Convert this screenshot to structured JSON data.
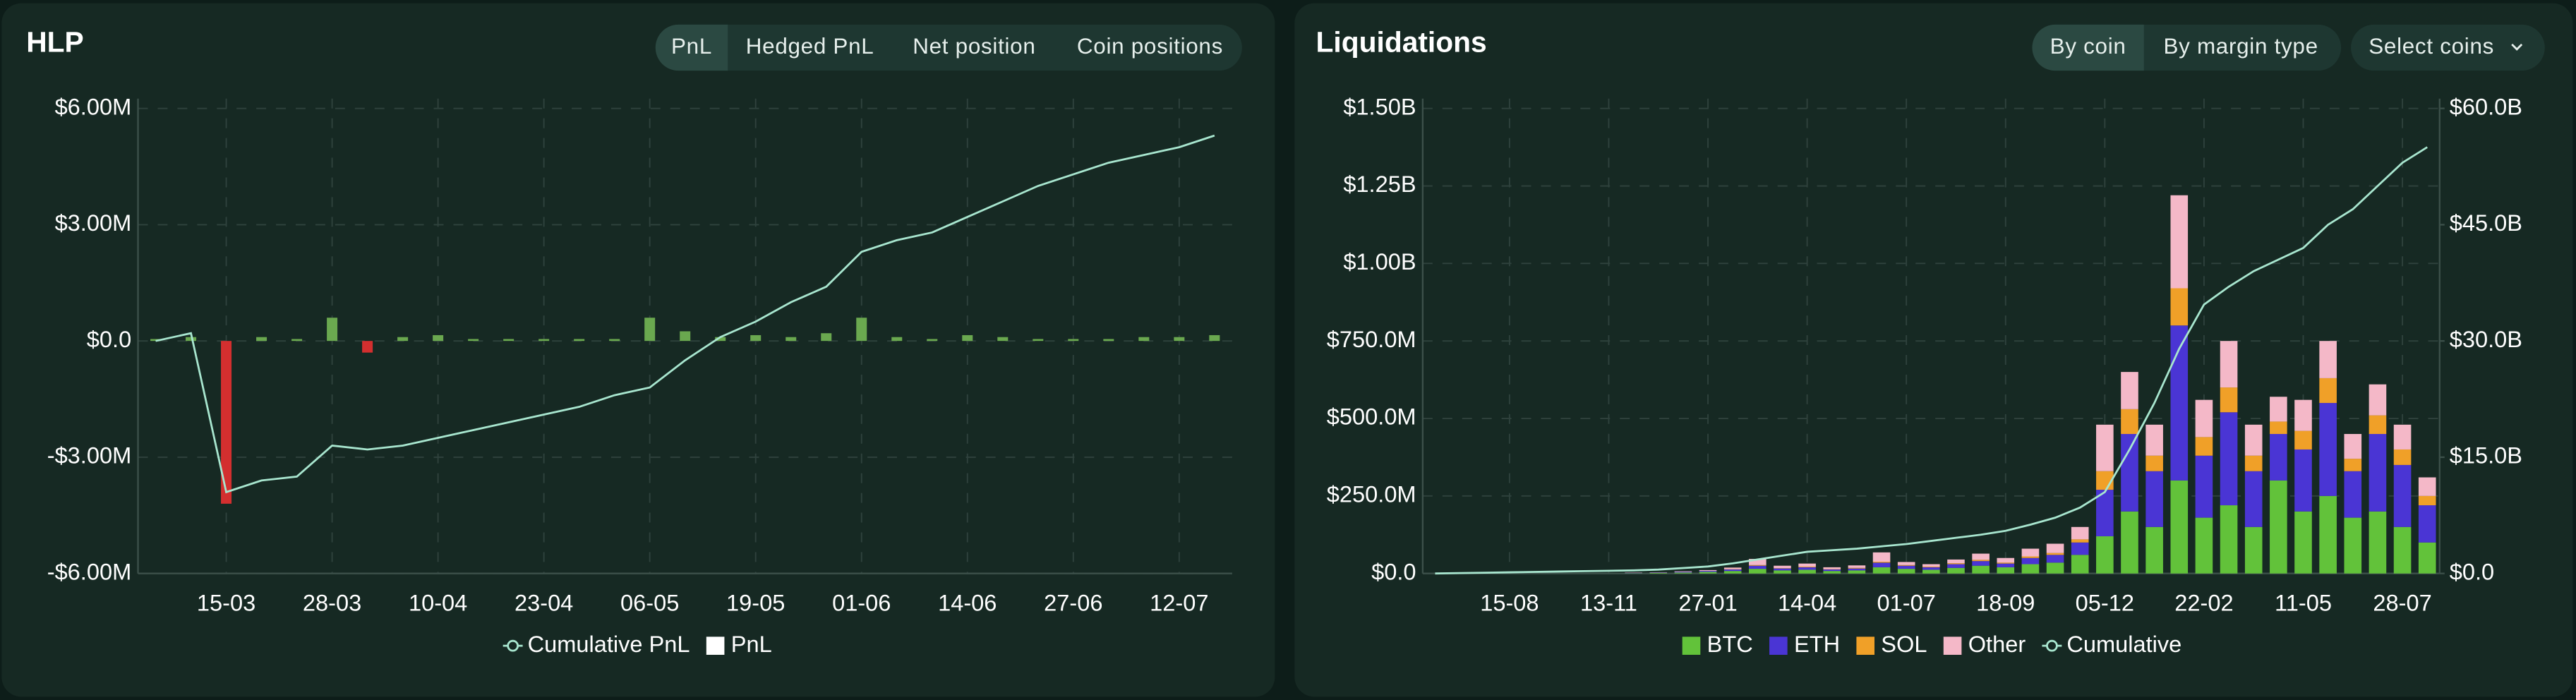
{
  "controls": {
    "hlp": [
      "PnL",
      "Hedged PnL",
      "Net position",
      "Coin positions"
    ],
    "liquidations": [
      "By coin",
      "By margin type"
    ],
    "select": "Select coins"
  },
  "chart_data": [
    {
      "type": "combo",
      "title": "HLP",
      "categories": [
        null,
        null,
        "15-03",
        null,
        null,
        "28-03",
        null,
        null,
        "10-04",
        null,
        null,
        "23-04",
        null,
        null,
        "06-05",
        null,
        null,
        "19-05",
        null,
        null,
        "01-06",
        null,
        null,
        "14-06",
        null,
        null,
        "27-06",
        null,
        null,
        "12-07",
        null
      ],
      "ylim": [
        -6000000,
        6000000
      ],
      "yticks": [
        {
          "value": -6000000,
          "label": "-$6.00M"
        },
        {
          "value": -3000000,
          "label": "-$3.00M"
        },
        {
          "value": 0,
          "label": "$0.0"
        },
        {
          "value": 3000000,
          "label": "$3.00M"
        },
        {
          "value": 6000000,
          "label": "$6.00M"
        }
      ],
      "grid": true,
      "series": [
        {
          "name": "Cumulative PnL",
          "type": "line",
          "color": "#a8e6cf",
          "values": [
            0,
            200000,
            -3900000,
            -3600000,
            -3500000,
            -2700000,
            -2800000,
            -2700000,
            -2500000,
            -2300000,
            -2100000,
            -1900000,
            -1700000,
            -1400000,
            -1200000,
            -500000,
            100000,
            500000,
            1000000,
            1400000,
            2300000,
            2600000,
            2800000,
            3200000,
            3600000,
            4000000,
            4300000,
            4600000,
            4800000,
            5000000,
            5300000
          ]
        },
        {
          "name": "PnL",
          "type": "bar",
          "color": "#ffffff",
          "positive_color": "#6aa84f",
          "negative_color": "#d32f2f",
          "values": [
            50000,
            100000,
            -4200000,
            100000,
            50000,
            600000,
            -300000,
            100000,
            150000,
            50000,
            50000,
            50000,
            50000,
            50000,
            600000,
            250000,
            100000,
            150000,
            100000,
            200000,
            600000,
            100000,
            50000,
            150000,
            100000,
            50000,
            50000,
            50000,
            100000,
            100000,
            150000
          ]
        }
      ]
    },
    {
      "type": "combo",
      "title": "Liquidations",
      "stacked": true,
      "categories": [
        null,
        null,
        null,
        "15-08",
        null,
        null,
        null,
        "13-11",
        null,
        null,
        null,
        "27-01",
        null,
        null,
        null,
        "14-04",
        null,
        null,
        null,
        "01-07",
        null,
        null,
        null,
        "18-09",
        null,
        null,
        null,
        "05-12",
        null,
        null,
        null,
        "22-02",
        null,
        null,
        null,
        "11-05",
        null,
        null,
        null,
        "28-07",
        null
      ],
      "ylim": [
        0,
        1500000000
      ],
      "yticks": [
        {
          "value": 0,
          "label": "$0.0"
        },
        {
          "value": 250000000,
          "label": "$250.0M"
        },
        {
          "value": 500000000,
          "label": "$500.0M"
        },
        {
          "value": 750000000,
          "label": "$750.0M"
        },
        {
          "value": 1000000000,
          "label": "$1.00B"
        },
        {
          "value": 1250000000,
          "label": "$1.25B"
        },
        {
          "value": 1500000000,
          "label": "$1.50B"
        }
      ],
      "y2lim": [
        0,
        60000000000
      ],
      "y2ticks": [
        {
          "value": 0,
          "label": "$0.0"
        },
        {
          "value": 15000000000,
          "label": "$15.0B"
        },
        {
          "value": 30000000000,
          "label": "$30.0B"
        },
        {
          "value": 45000000000,
          "label": "$45.0B"
        },
        {
          "value": 60000000000,
          "label": "$60.0B"
        }
      ],
      "grid": true,
      "series": [
        {
          "name": "BTC",
          "type": "bar",
          "color": "#62c23a",
          "values": [
            0,
            0,
            0,
            0,
            0,
            0,
            0,
            0,
            1000000.0,
            2000000.0,
            3000000.0,
            5000000.0,
            8000000.0,
            15000000.0,
            10000000.0,
            12000000.0,
            8000000.0,
            10000000.0,
            20000000.0,
            15000000.0,
            12000000.0,
            18000000.0,
            25000000.0,
            20000000.0,
            30000000.0,
            35000000.0,
            60000000.0,
            120000000.0,
            200000000.0,
            150000000.0,
            300000000.0,
            180000000.0,
            220000000.0,
            150000000.0,
            300000000.0,
            200000000.0,
            250000000.0,
            180000000.0,
            200000000.0,
            150000000.0,
            100000000.0
          ]
        },
        {
          "name": "ETH",
          "type": "bar",
          "color": "#4a35d4",
          "values": [
            0,
            0,
            0,
            0,
            0,
            0,
            0,
            0,
            1000000.0,
            1000000.0,
            2000000.0,
            3000000.0,
            5000000.0,
            10000000.0,
            6000000.0,
            8000000.0,
            5000000.0,
            6000000.0,
            15000000.0,
            10000000.0,
            8000000.0,
            12000000.0,
            15000000.0,
            12000000.0,
            20000000.0,
            25000000.0,
            40000000.0,
            150000000.0,
            250000000.0,
            180000000.0,
            500000000.0,
            200000000.0,
            300000000.0,
            180000000.0,
            150000000.0,
            200000000.0,
            300000000.0,
            150000000.0,
            250000000.0,
            200000000.0,
            120000000.0
          ]
        },
        {
          "name": "SOL",
          "type": "bar",
          "color": "#f0a028",
          "values": [
            0,
            0,
            0,
            0,
            0,
            0,
            0,
            0,
            0,
            0,
            0,
            0,
            1000000.0,
            2000000.0,
            1000000.0,
            2000000.0,
            1000000.0,
            2000000.0,
            3000000.0,
            2000000.0,
            2000000.0,
            3000000.0,
            4000000.0,
            3000000.0,
            5000000.0,
            6000000.0,
            10000000.0,
            60000000.0,
            80000000.0,
            50000000.0,
            120000000.0,
            60000000.0,
            80000000.0,
            50000000.0,
            40000000.0,
            60000000.0,
            80000000.0,
            40000000.0,
            60000000.0,
            50000000.0,
            30000000.0
          ]
        },
        {
          "name": "Other",
          "type": "bar",
          "color": "#f4b8c8",
          "values": [
            0,
            0,
            0,
            0,
            0,
            0,
            0,
            0,
            1000000.0,
            1000000.0,
            2000000.0,
            3000000.0,
            5000000.0,
            20000000.0,
            8000000.0,
            10000000.0,
            6000000.0,
            8000000.0,
            30000000.0,
            10000000.0,
            8000000.0,
            12000000.0,
            20000000.0,
            15000000.0,
            25000000.0,
            30000000.0,
            40000000.0,
            150000000.0,
            120000000.0,
            100000000.0,
            300000000.0,
            120000000.0,
            150000000.0,
            100000000.0,
            80000000.0,
            100000000.0,
            120000000.0,
            80000000.0,
            100000000.0,
            80000000.0,
            60000000.0
          ]
        },
        {
          "name": "Cumulative",
          "type": "line",
          "axis": "y2",
          "color": "#a8e6cf",
          "values": [
            0,
            50000000.0,
            100000000.0,
            150000000.0,
            200000000.0,
            250000000.0,
            300000000.0,
            350000000.0,
            400000000.0,
            500000000.0,
            700000000.0,
            900000000.0,
            1300000000.0,
            1800000000.0,
            2300000000.0,
            2800000000.0,
            3000000000.0,
            3200000000.0,
            3500000000.0,
            3800000000.0,
            4200000000.0,
            4600000000.0,
            5000000000.0,
            5500000000.0,
            6300000000.0,
            7200000000.0,
            8500000000.0,
            10500000000.0,
            16000000000.0,
            22000000000.0,
            29000000000.0,
            34700000000.0,
            37000000000.0,
            39000000000.0,
            40500000000.0,
            42000000000.0,
            45000000000.0,
            47000000000.0,
            50000000000.0,
            53000000000.0,
            55000000000.0
          ]
        }
      ]
    }
  ]
}
